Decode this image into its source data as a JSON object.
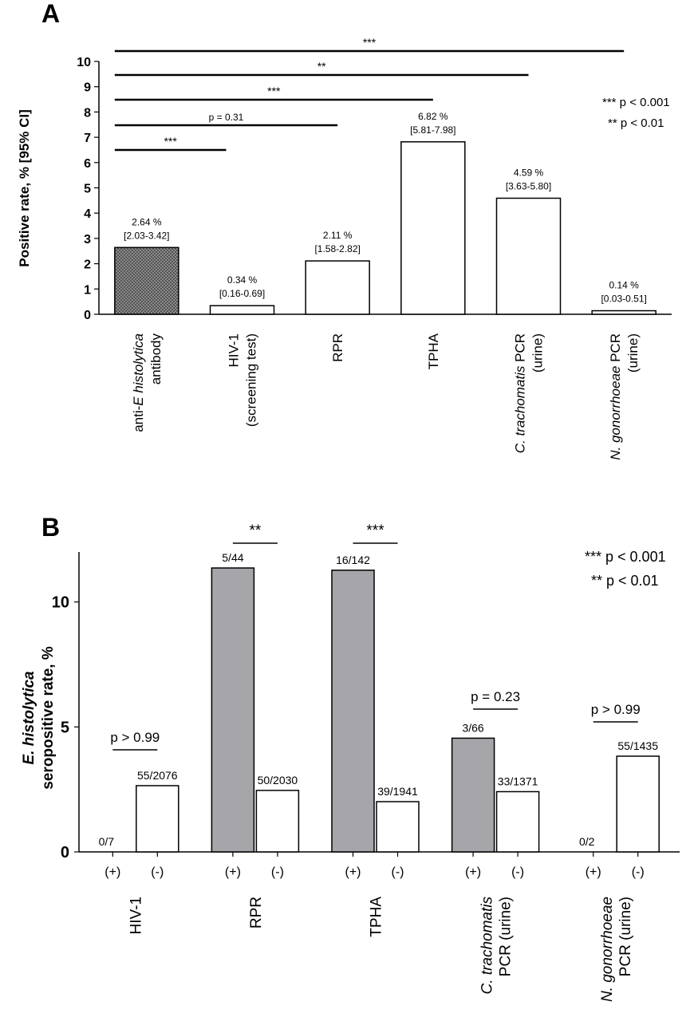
{
  "panel_a": {
    "letter": "A",
    "ylabel": "Positive rate, % [95% CI]",
    "legend": [
      "*** p < 0.001",
      "** p < 0.01"
    ],
    "significance": [
      {
        "from": 0,
        "to": 1,
        "label": "***"
      },
      {
        "from": 0,
        "to": 2,
        "label": "p = 0.31"
      },
      {
        "from": 0,
        "to": 3,
        "label": "***"
      },
      {
        "from": 0,
        "to": 4,
        "label": "**"
      },
      {
        "from": 0,
        "to": 5,
        "label": "***"
      }
    ]
  },
  "panel_b": {
    "letter": "B",
    "ylabel_line1": "E. histolytica",
    "ylabel_line2": "seropositive rate, %",
    "legend": [
      "*** p < 0.001",
      "** p < 0.01"
    ],
    "sub_labels": [
      "(+)",
      "(-)"
    ],
    "significance": [
      {
        "group": 0,
        "label": "p > 0.99"
      },
      {
        "group": 1,
        "label": "**"
      },
      {
        "group": 2,
        "label": "***"
      },
      {
        "group": 3,
        "label": "p = 0.23"
      },
      {
        "group": 4,
        "label": "p > 0.99"
      }
    ]
  },
  "chart_data": [
    {
      "type": "bar",
      "title": "",
      "ylabel": "Positive rate, % [95% CI]",
      "ylim": [
        0,
        10
      ],
      "yticks": [
        0,
        1,
        2,
        3,
        4,
        5,
        6,
        7,
        8,
        9,
        10
      ],
      "categories": [
        [
          "anti-E histolytica",
          "antibody"
        ],
        [
          "HIV-1",
          "(screening test)"
        ],
        [
          "RPR"
        ],
        [
          "TPHA"
        ],
        [
          "C. trachomatis PCR",
          "(urine)"
        ],
        [
          "N. gonorrhoeae PCR",
          "(urine)"
        ]
      ],
      "values": [
        2.64,
        0.34,
        2.11,
        6.82,
        4.59,
        0.14
      ],
      "value_labels": [
        "2.64 %",
        "0.34 %",
        "2.11 %",
        "6.82 %",
        "4.59 %",
        "0.14 %"
      ],
      "ci_labels": [
        "[2.03-3.42]",
        "[0.16-0.69]",
        "[1.58-2.82]",
        "[5.81-7.98]",
        "[3.63-5.80]",
        "[0.03-0.51]"
      ],
      "colors": [
        "#8c8c8c",
        "#ffffff",
        "#ffffff",
        "#ffffff",
        "#ffffff",
        "#ffffff"
      ]
    },
    {
      "type": "bar",
      "title": "",
      "ylabel": "E. histolytica seropositive rate, %",
      "ylim": [
        0,
        12
      ],
      "yticks": [
        0,
        5,
        10
      ],
      "categories": [
        [
          "HIV-1"
        ],
        [
          "RPR"
        ],
        [
          "TPHA"
        ],
        [
          "C. trachomatis",
          "PCR (urine)"
        ],
        [
          "N. gonorrhoeae",
          "PCR (urine)"
        ]
      ],
      "series": [
        {
          "name": "(+)",
          "values": [
            0,
            11.36,
            11.27,
            4.55,
            0
          ],
          "labels": [
            "0/7",
            "5/44",
            "16/142",
            "3/66",
            "0/2"
          ],
          "color": "#a6a6aa"
        },
        {
          "name": "(-)",
          "values": [
            2.65,
            2.46,
            2.01,
            2.41,
            3.83
          ],
          "labels": [
            "55/2076",
            "50/2030",
            "39/1941",
            "33/1371",
            "55/1435"
          ],
          "color": "#ffffff"
        }
      ]
    }
  ]
}
